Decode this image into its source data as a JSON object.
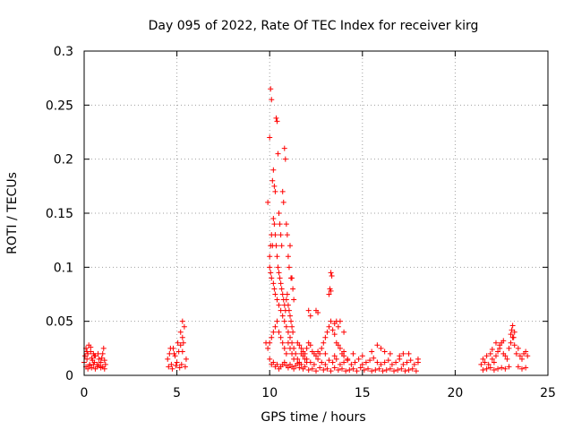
{
  "chart_data": {
    "type": "scatter",
    "title": "Day 095 of 2022, Rate Of TEC Index for receiver kirg",
    "xlabel": "GPS time / hours",
    "ylabel": "ROTI / TECUs",
    "xlim": [
      0,
      25
    ],
    "ylim": [
      0,
      0.3
    ],
    "xticks": [
      0,
      5,
      10,
      15,
      20,
      25
    ],
    "xtick_labels": [
      "0",
      "5",
      "10",
      "15",
      "20",
      "25"
    ],
    "yticks": [
      0,
      0.05,
      0.1,
      0.15,
      0.2,
      0.25,
      0.3
    ],
    "ytick_labels": [
      "0",
      "0.05",
      "0.1",
      "0.15",
      "0.2",
      "0.25",
      "0.3"
    ],
    "grid": true,
    "marker": "plus",
    "series": [
      {
        "color": "#ff0000",
        "x": [
          0.0,
          0.05,
          0.1,
          0.15,
          0.2,
          0.25,
          0.3,
          0.35,
          0.4,
          0.45,
          0.5,
          0.55,
          0.6,
          0.7,
          0.8,
          0.9,
          1.0,
          1.05,
          1.1,
          1.15,
          0.1,
          0.2,
          0.3,
          0.4,
          0.5,
          0.6,
          0.7,
          0.8,
          0.9,
          1.0,
          1.1,
          0.15,
          0.35,
          0.55,
          0.75,
          0.95,
          4.5,
          4.6,
          4.7,
          4.8,
          4.9,
          5.0,
          5.1,
          5.2,
          5.3,
          5.4,
          5.5,
          5.3,
          5.35,
          4.55,
          4.75,
          4.95,
          5.15,
          5.25,
          5.45,
          4.65,
          4.85,
          5.05,
          5.2,
          5.3,
          9.8,
          9.9,
          10.0,
          10.05,
          10.1,
          10.15,
          10.2,
          10.25,
          10.3,
          10.35,
          10.4,
          10.45,
          10.5,
          10.55,
          10.6,
          10.65,
          10.7,
          10.75,
          10.8,
          10.85,
          10.9,
          10.95,
          11.0,
          11.05,
          11.1,
          11.15,
          11.2,
          11.25,
          11.3,
          10.0,
          10.05,
          10.1,
          10.15,
          10.2,
          10.25,
          10.3,
          10.35,
          10.4,
          10.45,
          10.5,
          10.55,
          10.6,
          10.65,
          10.7,
          10.75,
          10.8,
          10.85,
          10.9,
          10.95,
          11.0,
          11.05,
          11.1,
          11.15,
          11.2,
          11.25,
          10.0,
          10.05,
          10.1,
          10.2,
          10.25,
          10.3,
          10.4,
          10.5,
          10.6,
          10.7,
          10.8,
          10.9,
          11.0,
          11.1,
          11.2,
          11.3,
          9.9,
          10.0,
          10.1,
          10.2,
          10.3,
          10.4,
          10.5,
          10.6,
          10.7,
          10.8,
          10.9,
          11.0,
          11.1,
          11.2,
          11.3,
          11.4,
          11.5,
          11.6,
          11.7,
          11.8,
          11.9,
          12.0,
          10.0,
          10.1,
          10.2,
          10.3,
          10.4,
          10.5,
          10.6,
          10.7,
          10.8,
          10.9,
          11.0,
          11.1,
          11.2,
          11.3,
          11.4,
          11.5,
          11.6,
          11.7,
          11.8,
          11.9,
          11.5,
          11.6,
          11.7,
          11.8,
          11.9,
          12.0,
          12.1,
          12.2,
          12.3,
          12.4,
          12.5,
          12.6,
          12.7,
          12.8,
          12.9,
          13.0,
          13.1,
          13.2,
          13.3,
          13.4,
          13.5,
          13.6,
          13.7,
          13.8,
          13.9,
          14.0,
          12.1,
          12.2,
          12.5,
          12.6,
          13.2,
          13.25,
          13.3,
          13.3,
          13.35,
          13.6,
          13.7,
          13.8,
          13.5,
          14.0,
          12.0,
          12.2,
          12.4,
          12.6,
          12.8,
          13.0,
          13.2,
          13.4,
          13.6,
          13.8,
          14.0,
          14.2,
          14.4,
          14.6,
          14.8,
          15.0,
          15.2,
          15.4,
          15.6,
          15.8,
          16.0,
          16.2,
          16.4,
          16.6,
          16.8,
          17.0,
          17.2,
          17.4,
          17.6,
          17.8,
          18.0,
          12.1,
          12.3,
          12.5,
          12.7,
          12.9,
          13.1,
          13.3,
          13.5,
          13.7,
          13.9,
          14.1,
          14.3,
          14.5,
          14.7,
          14.9,
          15.1,
          15.3,
          15.5,
          15.7,
          15.9,
          16.1,
          16.3,
          16.5,
          16.7,
          16.9,
          17.1,
          17.3,
          17.5,
          17.7,
          17.9,
          13.0,
          13.5,
          14.0,
          14.5,
          15.0,
          15.5,
          16.0,
          16.5,
          17.0,
          17.5,
          18.0,
          14.2,
          15.8,
          16.2,
          17.2,
          21.4,
          21.5,
          21.6,
          21.7,
          21.8,
          21.9,
          22.0,
          22.1,
          22.2,
          22.3,
          22.4,
          22.5,
          22.6,
          22.7,
          22.8,
          22.9,
          23.0,
          23.1,
          23.2,
          23.3,
          23.4,
          23.5,
          23.6,
          23.7,
          23.8,
          23.9,
          21.5,
          21.7,
          21.9,
          22.1,
          22.3,
          22.5,
          22.7,
          22.9,
          23.0,
          23.05,
          23.1,
          23.15,
          23.2,
          23.4,
          23.6,
          23.8,
          22.0,
          22.2,
          22.4,
          22.6
        ],
        "y": [
          0.012,
          0.018,
          0.025,
          0.015,
          0.02,
          0.028,
          0.01,
          0.022,
          0.016,
          0.014,
          0.02,
          0.012,
          0.018,
          0.01,
          0.015,
          0.012,
          0.02,
          0.025,
          0.014,
          0.01,
          0.008,
          0.006,
          0.009,
          0.007,
          0.01,
          0.006,
          0.008,
          0.009,
          0.007,
          0.008,
          0.006,
          0.022,
          0.026,
          0.018,
          0.02,
          0.016,
          0.015,
          0.02,
          0.01,
          0.025,
          0.018,
          0.012,
          0.022,
          0.028,
          0.05,
          0.045,
          0.015,
          0.035,
          0.03,
          0.008,
          0.006,
          0.009,
          0.007,
          0.01,
          0.008,
          0.025,
          0.02,
          0.03,
          0.04,
          0.022,
          0.03,
          0.16,
          0.22,
          0.265,
          0.255,
          0.18,
          0.19,
          0.175,
          0.17,
          0.238,
          0.235,
          0.205,
          0.15,
          0.14,
          0.13,
          0.12,
          0.17,
          0.16,
          0.21,
          0.2,
          0.14,
          0.13,
          0.11,
          0.1,
          0.12,
          0.09,
          0.09,
          0.08,
          0.07,
          0.11,
          0.12,
          0.13,
          0.12,
          0.145,
          0.14,
          0.13,
          0.12,
          0.11,
          0.1,
          0.095,
          0.09,
          0.085,
          0.08,
          0.075,
          0.07,
          0.065,
          0.06,
          0.07,
          0.075,
          0.065,
          0.06,
          0.055,
          0.05,
          0.045,
          0.04,
          0.1,
          0.095,
          0.09,
          0.085,
          0.08,
          0.075,
          0.07,
          0.065,
          0.06,
          0.055,
          0.05,
          0.045,
          0.04,
          0.035,
          0.03,
          0.025,
          0.025,
          0.03,
          0.035,
          0.04,
          0.045,
          0.05,
          0.04,
          0.035,
          0.03,
          0.025,
          0.02,
          0.03,
          0.025,
          0.02,
          0.015,
          0.02,
          0.015,
          0.012,
          0.02,
          0.018,
          0.015,
          0.012,
          0.015,
          0.01,
          0.012,
          0.008,
          0.01,
          0.006,
          0.008,
          0.01,
          0.012,
          0.009,
          0.007,
          0.01,
          0.008,
          0.006,
          0.009,
          0.011,
          0.007,
          0.01,
          0.006,
          0.008,
          0.03,
          0.028,
          0.025,
          0.022,
          0.02,
          0.025,
          0.03,
          0.028,
          0.022,
          0.02,
          0.018,
          0.022,
          0.02,
          0.025,
          0.03,
          0.035,
          0.04,
          0.045,
          0.05,
          0.042,
          0.038,
          0.03,
          0.028,
          0.025,
          0.02,
          0.018,
          0.06,
          0.055,
          0.06,
          0.058,
          0.075,
          0.08,
          0.078,
          0.095,
          0.092,
          0.05,
          0.045,
          0.05,
          0.048,
          0.04,
          0.015,
          0.012,
          0.01,
          0.015,
          0.012,
          0.01,
          0.014,
          0.012,
          0.015,
          0.01,
          0.012,
          0.014,
          0.01,
          0.012,
          0.015,
          0.01,
          0.012,
          0.014,
          0.016,
          0.012,
          0.01,
          0.012,
          0.014,
          0.01,
          0.012,
          0.015,
          0.01,
          0.012,
          0.014,
          0.01,
          0.012,
          0.005,
          0.006,
          0.004,
          0.007,
          0.005,
          0.006,
          0.004,
          0.007,
          0.005,
          0.006,
          0.004,
          0.005,
          0.006,
          0.004,
          0.007,
          0.005,
          0.006,
          0.004,
          0.005,
          0.006,
          0.004,
          0.005,
          0.006,
          0.004,
          0.005,
          0.006,
          0.004,
          0.005,
          0.006,
          0.004,
          0.02,
          0.018,
          0.022,
          0.02,
          0.018,
          0.022,
          0.025,
          0.02,
          0.018,
          0.02,
          0.015,
          0.015,
          0.028,
          0.022,
          0.02,
          0.01,
          0.015,
          0.012,
          0.018,
          0.01,
          0.02,
          0.015,
          0.012,
          0.018,
          0.022,
          0.025,
          0.03,
          0.02,
          0.018,
          0.015,
          0.025,
          0.03,
          0.035,
          0.028,
          0.02,
          0.025,
          0.018,
          0.015,
          0.02,
          0.022,
          0.018,
          0.005,
          0.006,
          0.007,
          0.005,
          0.006,
          0.007,
          0.006,
          0.008,
          0.038,
          0.042,
          0.046,
          0.035,
          0.04,
          0.008,
          0.006,
          0.007,
          0.024,
          0.03,
          0.028,
          0.032
        ]
      }
    ]
  }
}
